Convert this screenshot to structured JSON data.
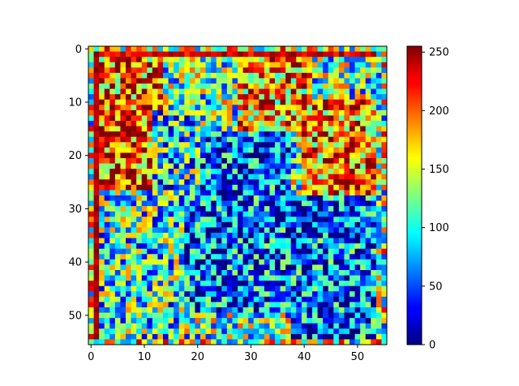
{
  "chart_data": {
    "type": "heatmap",
    "colormap": "jet",
    "rows": 56,
    "cols": 56,
    "value_range": [
      0,
      255
    ],
    "x_ticks": [
      0,
      10,
      20,
      30,
      40,
      50
    ],
    "y_ticks": [
      0,
      10,
      20,
      30,
      40,
      50
    ],
    "colorbar_ticks": [
      0,
      50,
      100,
      150,
      200,
      250
    ],
    "x_tick_labels": [
      "0",
      "10",
      "20",
      "30",
      "40",
      "50"
    ],
    "y_tick_labels": [
      "0",
      "10",
      "20",
      "30",
      "40",
      "50"
    ],
    "colorbar_tick_labels": [
      "0",
      "50",
      "100",
      "150",
      "200",
      "250"
    ],
    "values_note": "",
    "regions": [
      {
        "rows": [
          1,
          12
        ],
        "cols": [
          1,
          14
        ],
        "mean": 195
      },
      {
        "rows": [
          12,
          27
        ],
        "cols": [
          2,
          12
        ],
        "mean": 205
      },
      {
        "rows": [
          2,
          12
        ],
        "cols": [
          14,
          28
        ],
        "mean": 120
      },
      {
        "rows": [
          12,
          28
        ],
        "cols": [
          12,
          21
        ],
        "mean": 95
      },
      {
        "rows": [
          16,
          50
        ],
        "cols": [
          18,
          38
        ],
        "mean": 55
      },
      {
        "rows": [
          2,
          16
        ],
        "cols": [
          28,
          42
        ],
        "mean": 185
      },
      {
        "rows": [
          10,
          28
        ],
        "cols": [
          40,
          54
        ],
        "mean": 195
      },
      {
        "rows": [
          28,
          55
        ],
        "cols": [
          38,
          54
        ],
        "mean": 55
      },
      {
        "rows": [
          28,
          55
        ],
        "cols": [
          2,
          18
        ],
        "mean": 105
      }
    ]
  }
}
